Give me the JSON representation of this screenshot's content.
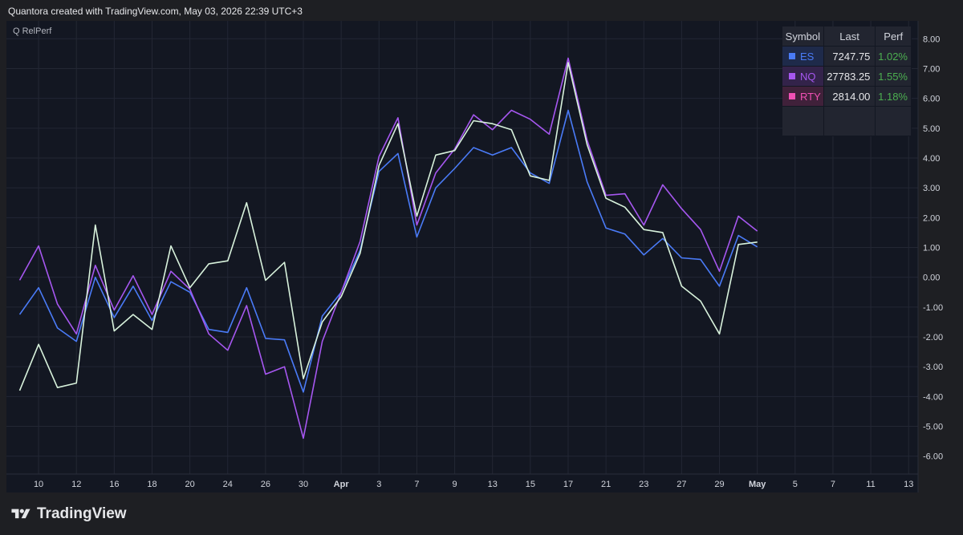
{
  "header": {
    "text": "Quantora created with TradingView.com, May 03, 2026 22:39 UTC+3"
  },
  "study": {
    "label": "Q RelPerf"
  },
  "footer": {
    "brand": "TradingView",
    "logo_icon": "tradingview-logo-icon"
  },
  "legend": {
    "headers": [
      "Symbol",
      "Last",
      "Perf"
    ],
    "rows": [
      {
        "symbol": "ES",
        "last": "7247.75",
        "perf": "1.02%",
        "color": "#4a7bf7",
        "bg": "#1e2a4a"
      },
      {
        "symbol": "NQ",
        "last": "27783.25",
        "perf": "1.55%",
        "color": "#a657f0",
        "bg": "#33234a"
      },
      {
        "symbol": "RTY",
        "last": "2814.00",
        "perf": "1.18%",
        "color": "#f050b4",
        "bg": "#40213a"
      }
    ]
  },
  "colors": {
    "perf_positive": "#4caf50",
    "es": "#4a7bf7",
    "nq": "#a657f0",
    "rty": "#d8f2dc"
  },
  "chart_data": {
    "type": "line",
    "y_axis": {
      "position": "right",
      "ylim": [
        -6.6,
        8.6
      ],
      "ticks": [
        "8.00",
        "7.00",
        "6.00",
        "5.00",
        "4.00",
        "3.00",
        "2.00",
        "1.00",
        "0.00",
        "-1.00",
        "-2.00",
        "-3.00",
        "-4.00",
        "-5.00",
        "-6.00"
      ],
      "tick_values": [
        8,
        7,
        6,
        5,
        4,
        3,
        2,
        1,
        0,
        -1,
        -2,
        -3,
        -4,
        -5,
        -6
      ]
    },
    "x_axis": {
      "index_range": [
        -0.7,
        47.5
      ],
      "ticks": [
        {
          "label": "10",
          "i": 1,
          "bold": false
        },
        {
          "label": "12",
          "i": 3,
          "bold": false
        },
        {
          "label": "16",
          "i": 5,
          "bold": false
        },
        {
          "label": "18",
          "i": 7,
          "bold": false
        },
        {
          "label": "20",
          "i": 9,
          "bold": false
        },
        {
          "label": "24",
          "i": 11,
          "bold": false
        },
        {
          "label": "26",
          "i": 13,
          "bold": false
        },
        {
          "label": "30",
          "i": 15,
          "bold": false
        },
        {
          "label": "Apr",
          "i": 17,
          "bold": true
        },
        {
          "label": "3",
          "i": 19,
          "bold": false
        },
        {
          "label": "7",
          "i": 21,
          "bold": false
        },
        {
          "label": "9",
          "i": 23,
          "bold": false
        },
        {
          "label": "13",
          "i": 25,
          "bold": false
        },
        {
          "label": "15",
          "i": 27,
          "bold": false
        },
        {
          "label": "17",
          "i": 29,
          "bold": false
        },
        {
          "label": "21",
          "i": 31,
          "bold": false
        },
        {
          "label": "23",
          "i": 33,
          "bold": false
        },
        {
          "label": "27",
          "i": 35,
          "bold": false
        },
        {
          "label": "29",
          "i": 37,
          "bold": false
        },
        {
          "label": "May",
          "i": 39,
          "bold": true
        },
        {
          "label": "5",
          "i": 41,
          "bold": false
        },
        {
          "label": "7",
          "i": 43,
          "bold": false
        },
        {
          "label": "11",
          "i": 45,
          "bold": false
        },
        {
          "label": "13",
          "i": 47,
          "bold": false
        }
      ]
    },
    "grid": true,
    "legend_placement": "top-right",
    "series": [
      {
        "name": "ES",
        "color": "#4a7bf7",
        "values": [
          -1.25,
          -0.35,
          -1.7,
          -2.15,
          0.0,
          -1.35,
          -0.3,
          -1.45,
          -0.15,
          -0.5,
          -1.75,
          -1.85,
          -0.35,
          -2.05,
          -2.1,
          -3.85,
          -1.3,
          -0.5,
          0.9,
          3.55,
          4.15,
          1.35,
          3.0,
          3.65,
          4.35,
          4.1,
          4.35,
          3.5,
          3.15,
          5.6,
          3.2,
          1.65,
          1.45,
          0.75,
          1.3,
          0.65,
          0.6,
          -0.3,
          1.4,
          1.02
        ]
      },
      {
        "name": "NQ",
        "color": "#a657f0",
        "values": [
          -0.1,
          1.05,
          -0.9,
          -1.9,
          0.4,
          -1.1,
          0.05,
          -1.25,
          0.2,
          -0.4,
          -1.9,
          -2.45,
          -0.95,
          -3.25,
          -3.0,
          -5.4,
          -2.15,
          -0.5,
          1.2,
          4.05,
          5.35,
          1.75,
          3.5,
          4.3,
          5.45,
          4.95,
          5.6,
          5.3,
          4.8,
          7.35,
          4.6,
          2.75,
          2.8,
          1.75,
          3.1,
          2.3,
          1.6,
          0.2,
          2.05,
          1.55
        ]
      },
      {
        "name": "RTY",
        "color": "#d8f2dc",
        "values": [
          -3.8,
          -2.25,
          -3.7,
          -3.55,
          1.75,
          -1.8,
          -1.25,
          -1.75,
          1.05,
          -0.35,
          0.45,
          0.55,
          2.5,
          -0.1,
          0.5,
          -3.4,
          -1.5,
          -0.65,
          0.8,
          3.75,
          5.15,
          2.05,
          4.1,
          4.25,
          5.25,
          5.15,
          4.95,
          3.4,
          3.25,
          7.2,
          4.45,
          2.65,
          2.35,
          1.6,
          1.5,
          -0.3,
          -0.8,
          -1.9,
          1.1,
          1.18
        ]
      }
    ]
  }
}
